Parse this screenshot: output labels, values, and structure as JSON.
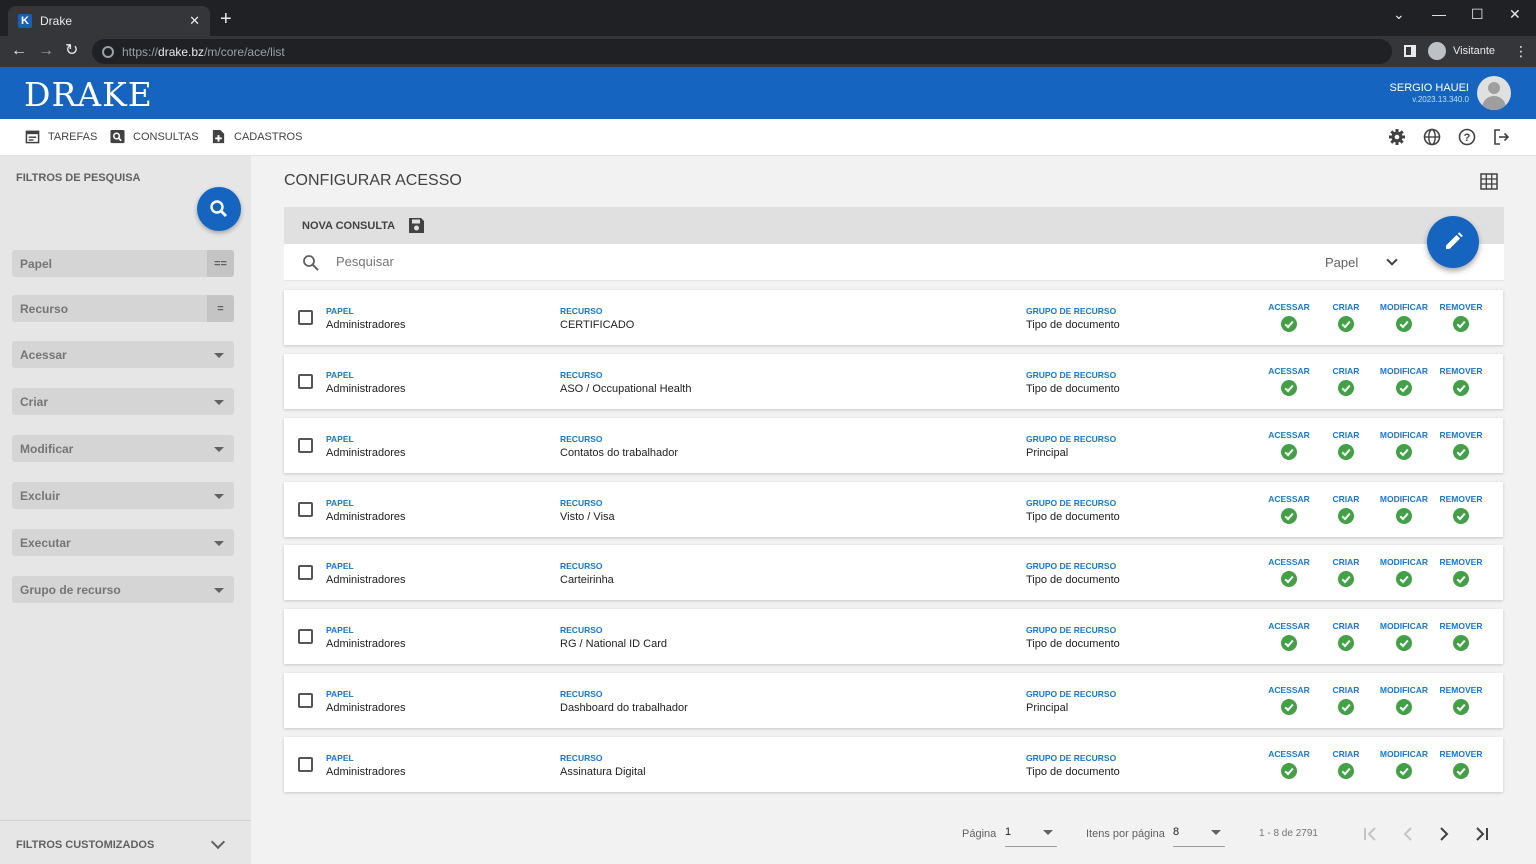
{
  "browser": {
    "tab_title": "Drake",
    "tab_favicon": "K",
    "url_scheme": "https://",
    "url_host": "drake.bz",
    "url_path": "/m/core/ace/list",
    "profile_label": "Visitante"
  },
  "header": {
    "logo": "DRAKE",
    "user_name": "SERGIO HAUEI",
    "version": "v.2023.13.340.0",
    "brand_color": "#1565c0"
  },
  "menu": {
    "items": [
      {
        "label": "TAREFAS",
        "icon": "calendar-icon"
      },
      {
        "label": "CONSULTAS",
        "icon": "search-box-icon"
      },
      {
        "label": "CADASTROS",
        "icon": "file-add-icon"
      }
    ],
    "right_icons": [
      "settings-icon",
      "globe-icon",
      "help-icon",
      "logout-icon"
    ]
  },
  "sidebar": {
    "title": "FILTROS DE PESQUISA",
    "filters": [
      {
        "label": "Papel",
        "op": "=="
      },
      {
        "label": "Recurso",
        "op": "="
      },
      {
        "label": "Acessar"
      },
      {
        "label": "Criar"
      },
      {
        "label": "Modificar"
      },
      {
        "label": "Excluir"
      },
      {
        "label": "Executar"
      },
      {
        "label": "Grupo de recurso"
      }
    ],
    "footer": "FILTROS CUSTOMIZADOS"
  },
  "main": {
    "title": "CONFIGURAR ACESSO",
    "query_label": "NOVA CONSULTA",
    "search_placeholder": "Pesquisar",
    "search_field": "Papel"
  },
  "columns": {
    "papel": "PAPEL",
    "recurso": "RECURSO",
    "grupo": "GRUPO DE RECURSO",
    "acessar": "ACESSAR",
    "criar": "CRIAR",
    "modificar": "MODIFICAR",
    "remover": "REMOVER"
  },
  "rows": [
    {
      "papel": "Administradores",
      "recurso": "CERTIFICADO",
      "grupo": "Tipo de documento"
    },
    {
      "papel": "Administradores",
      "recurso": "ASO / Occupational Health",
      "grupo": "Tipo de documento"
    },
    {
      "papel": "Administradores",
      "recurso": "Contatos do trabalhador",
      "grupo": "Principal"
    },
    {
      "papel": "Administradores",
      "recurso": "Visto / Visa",
      "grupo": "Tipo de documento"
    },
    {
      "papel": "Administradores",
      "recurso": "Carteirinha",
      "grupo": "Tipo de documento"
    },
    {
      "papel": "Administradores",
      "recurso": "RG / National ID Card",
      "grupo": "Tipo de documento"
    },
    {
      "papel": "Administradores",
      "recurso": "Dashboard do trabalhador",
      "grupo": "Principal"
    },
    {
      "papel": "Administradores",
      "recurso": "Assinatura Digital",
      "grupo": "Tipo de documento"
    }
  ],
  "pagination": {
    "page_label": "Página",
    "page_value": "1",
    "items_label": "Itens por página",
    "items_value": "8",
    "range": "1 - 8 de 2791"
  },
  "colors": {
    "check_green": "#43a047",
    "label_blue": "#1976d2"
  }
}
